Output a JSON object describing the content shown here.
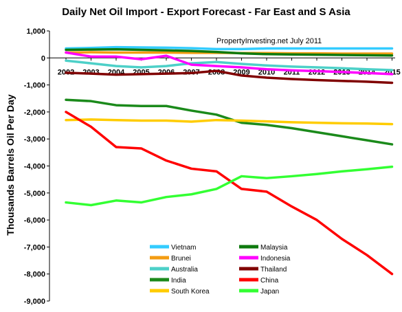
{
  "chart_data": {
    "type": "line",
    "title": "Daily Net Oil Import - Export Forecast -  Far East and S Asia",
    "annotation": "PropertyInvesting.net  July 2011",
    "ylabel": "Thousands Barrels Oil Per Day",
    "xlabel": "",
    "ylim": [
      -9000,
      1000
    ],
    "y_ticks": [
      1000,
      0,
      -1000,
      -2000,
      -3000,
      -4000,
      -5000,
      -6000,
      -7000,
      -8000,
      -9000
    ],
    "y_tick_labels": [
      "1,000",
      "0",
      "-1,000",
      "-2,000",
      "-3,000",
      "-4,000",
      "-5,000",
      "-6,000",
      "-7,000",
      "-8,000",
      "-9,000"
    ],
    "x": [
      "2002",
      "2003",
      "2004",
      "2005",
      "2006",
      "2007",
      "2008",
      "2009",
      "2010",
      "2011",
      "2012",
      "2013",
      "2014",
      "2015"
    ],
    "grid": false,
    "legend_position": "bottom-center",
    "series": [
      {
        "name": "Vietnam",
        "color": "#33CCFF",
        "values": [
          350,
          370,
          400,
          390,
          380,
          360,
          330,
          330,
          350,
          350,
          350,
          350,
          350,
          350
        ]
      },
      {
        "name": "Brunei",
        "color": "#F39C12",
        "values": [
          200,
          210,
          200,
          200,
          200,
          190,
          190,
          180,
          180,
          170,
          170,
          160,
          160,
          160
        ]
      },
      {
        "name": "Australia",
        "color": "#4DD0C8",
        "values": [
          -100,
          -200,
          -300,
          -350,
          -300,
          -200,
          -150,
          -220,
          -280,
          -320,
          -350,
          -380,
          -420,
          -450
        ]
      },
      {
        "name": "India",
        "color": "#1B8A1B",
        "values": [
          -1550,
          -1600,
          -1750,
          -1780,
          -1780,
          -1950,
          -2100,
          -2400,
          -2480,
          -2600,
          -2750,
          -2900,
          -3050,
          -3200
        ]
      },
      {
        "name": "South Korea",
        "color": "#FFCC00",
        "values": [
          -2300,
          -2280,
          -2300,
          -2320,
          -2320,
          -2360,
          -2300,
          -2320,
          -2350,
          -2380,
          -2400,
          -2420,
          -2430,
          -2450
        ]
      },
      {
        "name": "Malaysia",
        "color": "#0E7A0E",
        "values": [
          300,
          310,
          320,
          300,
          280,
          260,
          220,
          170,
          140,
          130,
          120,
          110,
          100,
          90
        ]
      },
      {
        "name": "Indonesia",
        "color": "#FF00FF",
        "values": [
          200,
          50,
          50,
          -50,
          80,
          -250,
          -300,
          -350,
          -420,
          -460,
          -490,
          -520,
          -560,
          -600
        ]
      },
      {
        "name": "Thailand",
        "color": "#800000",
        "values": [
          -550,
          -580,
          -620,
          -600,
          -580,
          -560,
          -480,
          -650,
          -730,
          -780,
          -820,
          -850,
          -880,
          -920
        ]
      },
      {
        "name": "China",
        "color": "#FF0000",
        "values": [
          -2000,
          -2550,
          -3300,
          -3350,
          -3800,
          -4100,
          -4200,
          -4850,
          -4950,
          -5500,
          -6000,
          -6700,
          -7300,
          -8000
        ]
      },
      {
        "name": "Japan",
        "color": "#33FF33",
        "values": [
          -5350,
          -5450,
          -5280,
          -5350,
          -5150,
          -5050,
          -4850,
          -4380,
          -4450,
          -4380,
          -4300,
          -4200,
          -4120,
          -4030
        ]
      }
    ]
  }
}
